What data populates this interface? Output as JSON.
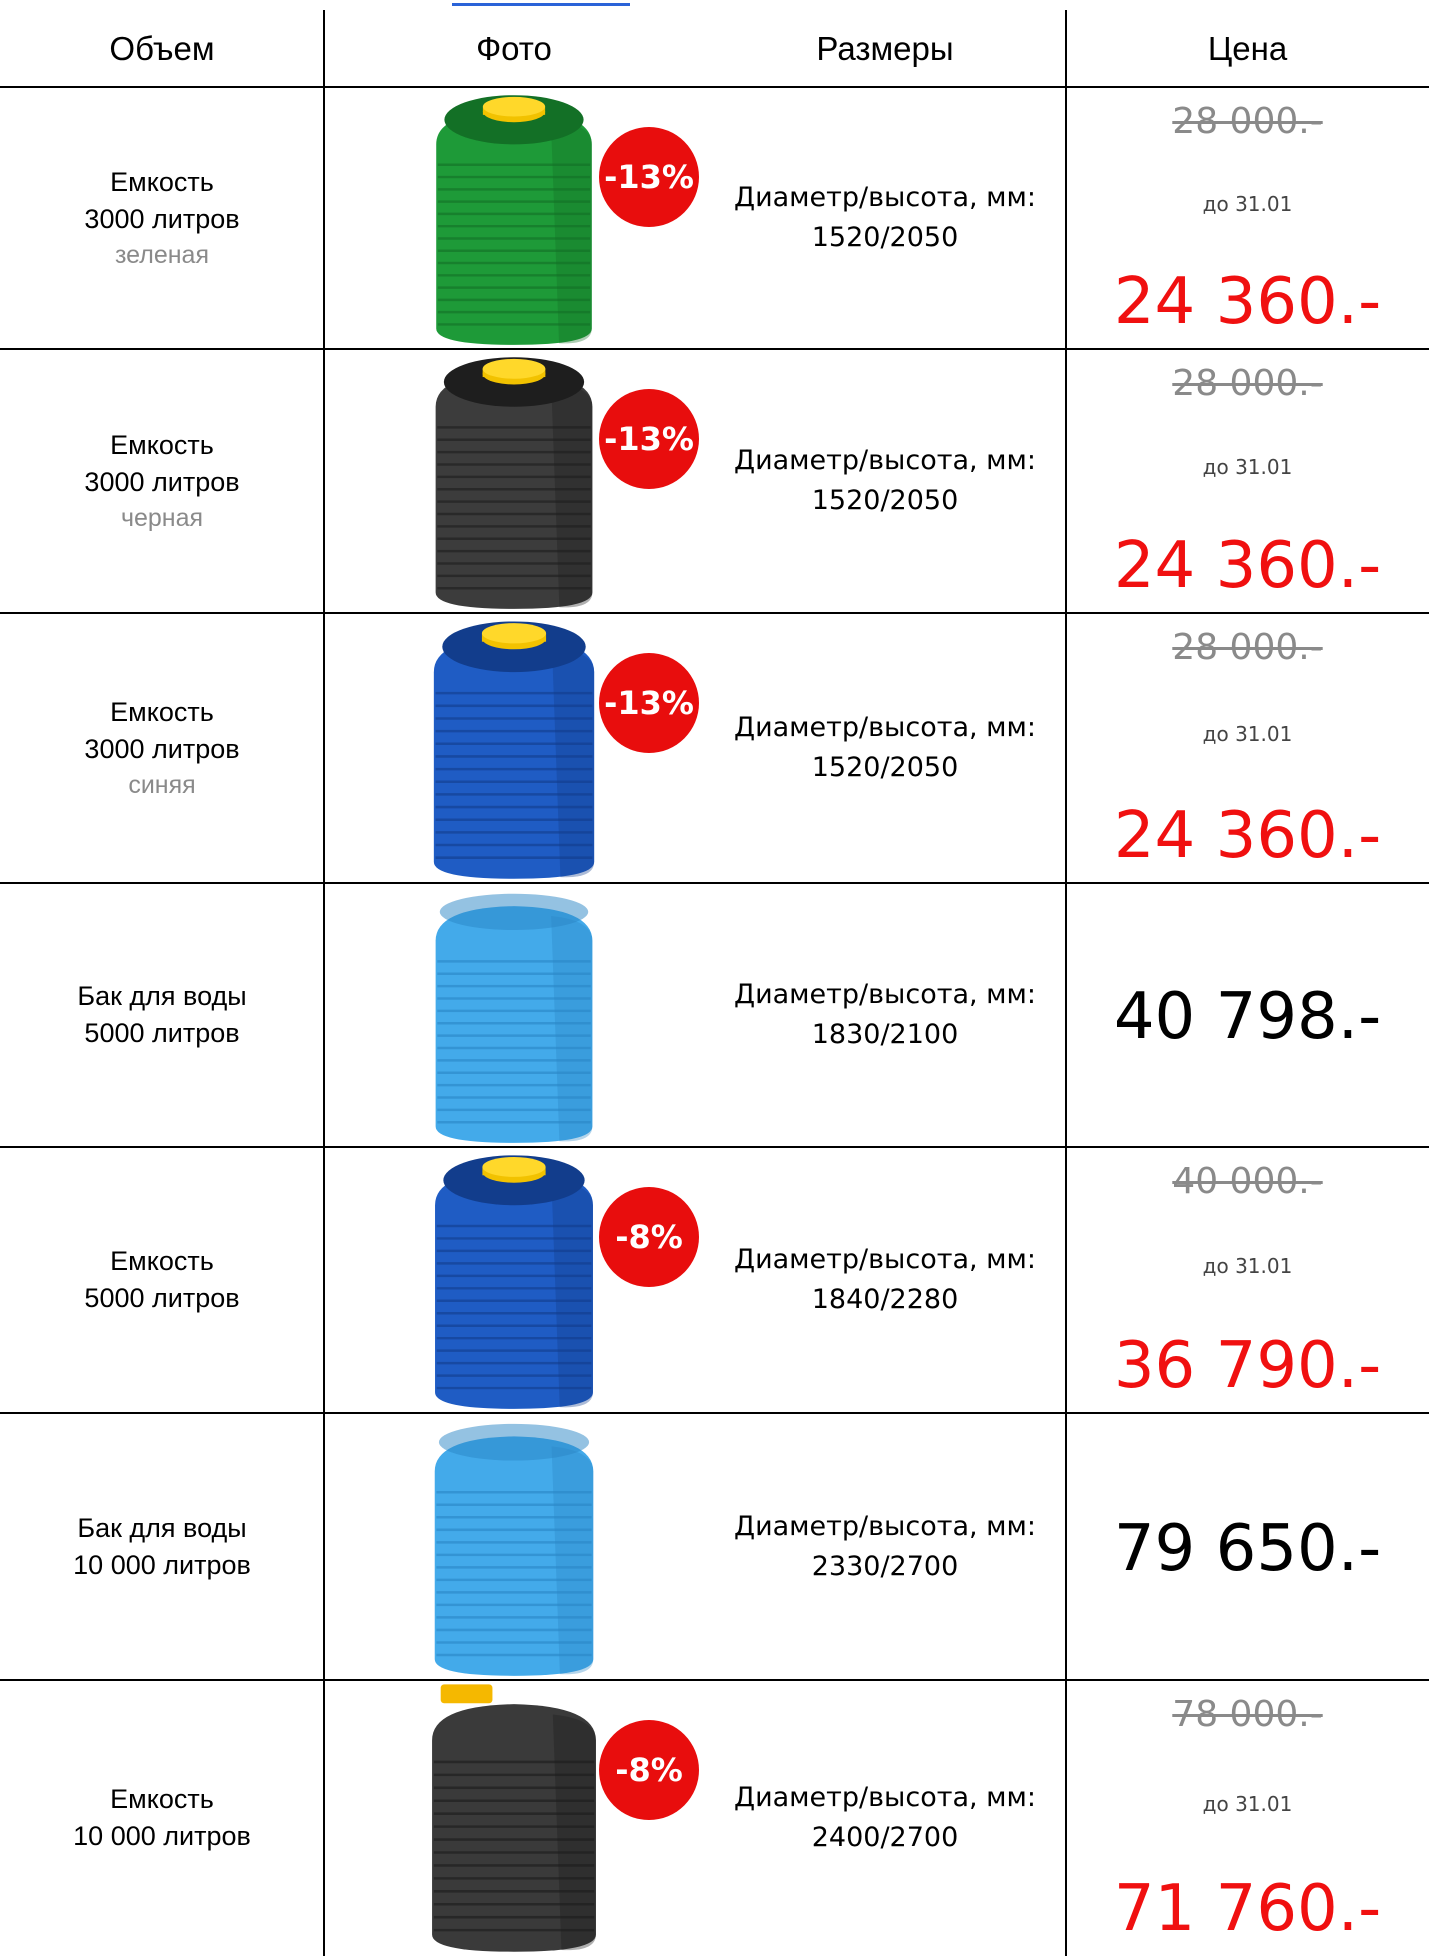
{
  "header": {
    "columns": [
      "Объем",
      "Фото",
      "Размеры",
      "Цена"
    ]
  },
  "rows": [
    {
      "name": [
        "Емкость",
        "3000 литров"
      ],
      "color": "зеленая",
      "badge": "-13%",
      "size_label": "Диаметр/высота, мм:",
      "size": "1520/2050",
      "old_price": "28 000.-",
      "until": "до 31.01",
      "price": "24 360.-"
    },
    {
      "name": [
        "Емкость",
        "3000 литров"
      ],
      "color": "черная",
      "badge": "-13%",
      "size_label": "Диаметр/высота, мм:",
      "size": "1520/2050",
      "old_price": "28 000.-",
      "until": "до 31.01",
      "price": "24 360.-"
    },
    {
      "name": [
        "Емкость",
        "3000 литров"
      ],
      "color": "синяя",
      "badge": "-13%",
      "size_label": "Диаметр/высота, мм:",
      "size": "1520/2050",
      "old_price": "28 000.-",
      "until": "до 31.01",
      "price": "24 360.-"
    },
    {
      "name": [
        "Бак для воды",
        "5000 литров"
      ],
      "size_label": "Диаметр/высота, мм:",
      "size": "1830/2100",
      "price": "40 798.-"
    },
    {
      "name": [
        "Емкость",
        "5000 литров"
      ],
      "badge": "-8%",
      "size_label": "Диаметр/высота, мм:",
      "size": "1840/2280",
      "old_price": "40 000.-",
      "until": "до 31.01",
      "price": "36 790.-"
    },
    {
      "name": [
        "Бак для воды",
        "10 000 литров"
      ],
      "size_label": "Диаметр/высота, мм:",
      "size": "2330/2700",
      "price": "79 650.-"
    },
    {
      "name": [
        "Емкость",
        "10 000 литров"
      ],
      "badge": "-8%",
      "size_label": "Диаметр/высота, мм:",
      "size": "2400/2700",
      "old_price": "78 000.-",
      "until": "до 31.01",
      "price": "71 760.-"
    }
  ]
}
